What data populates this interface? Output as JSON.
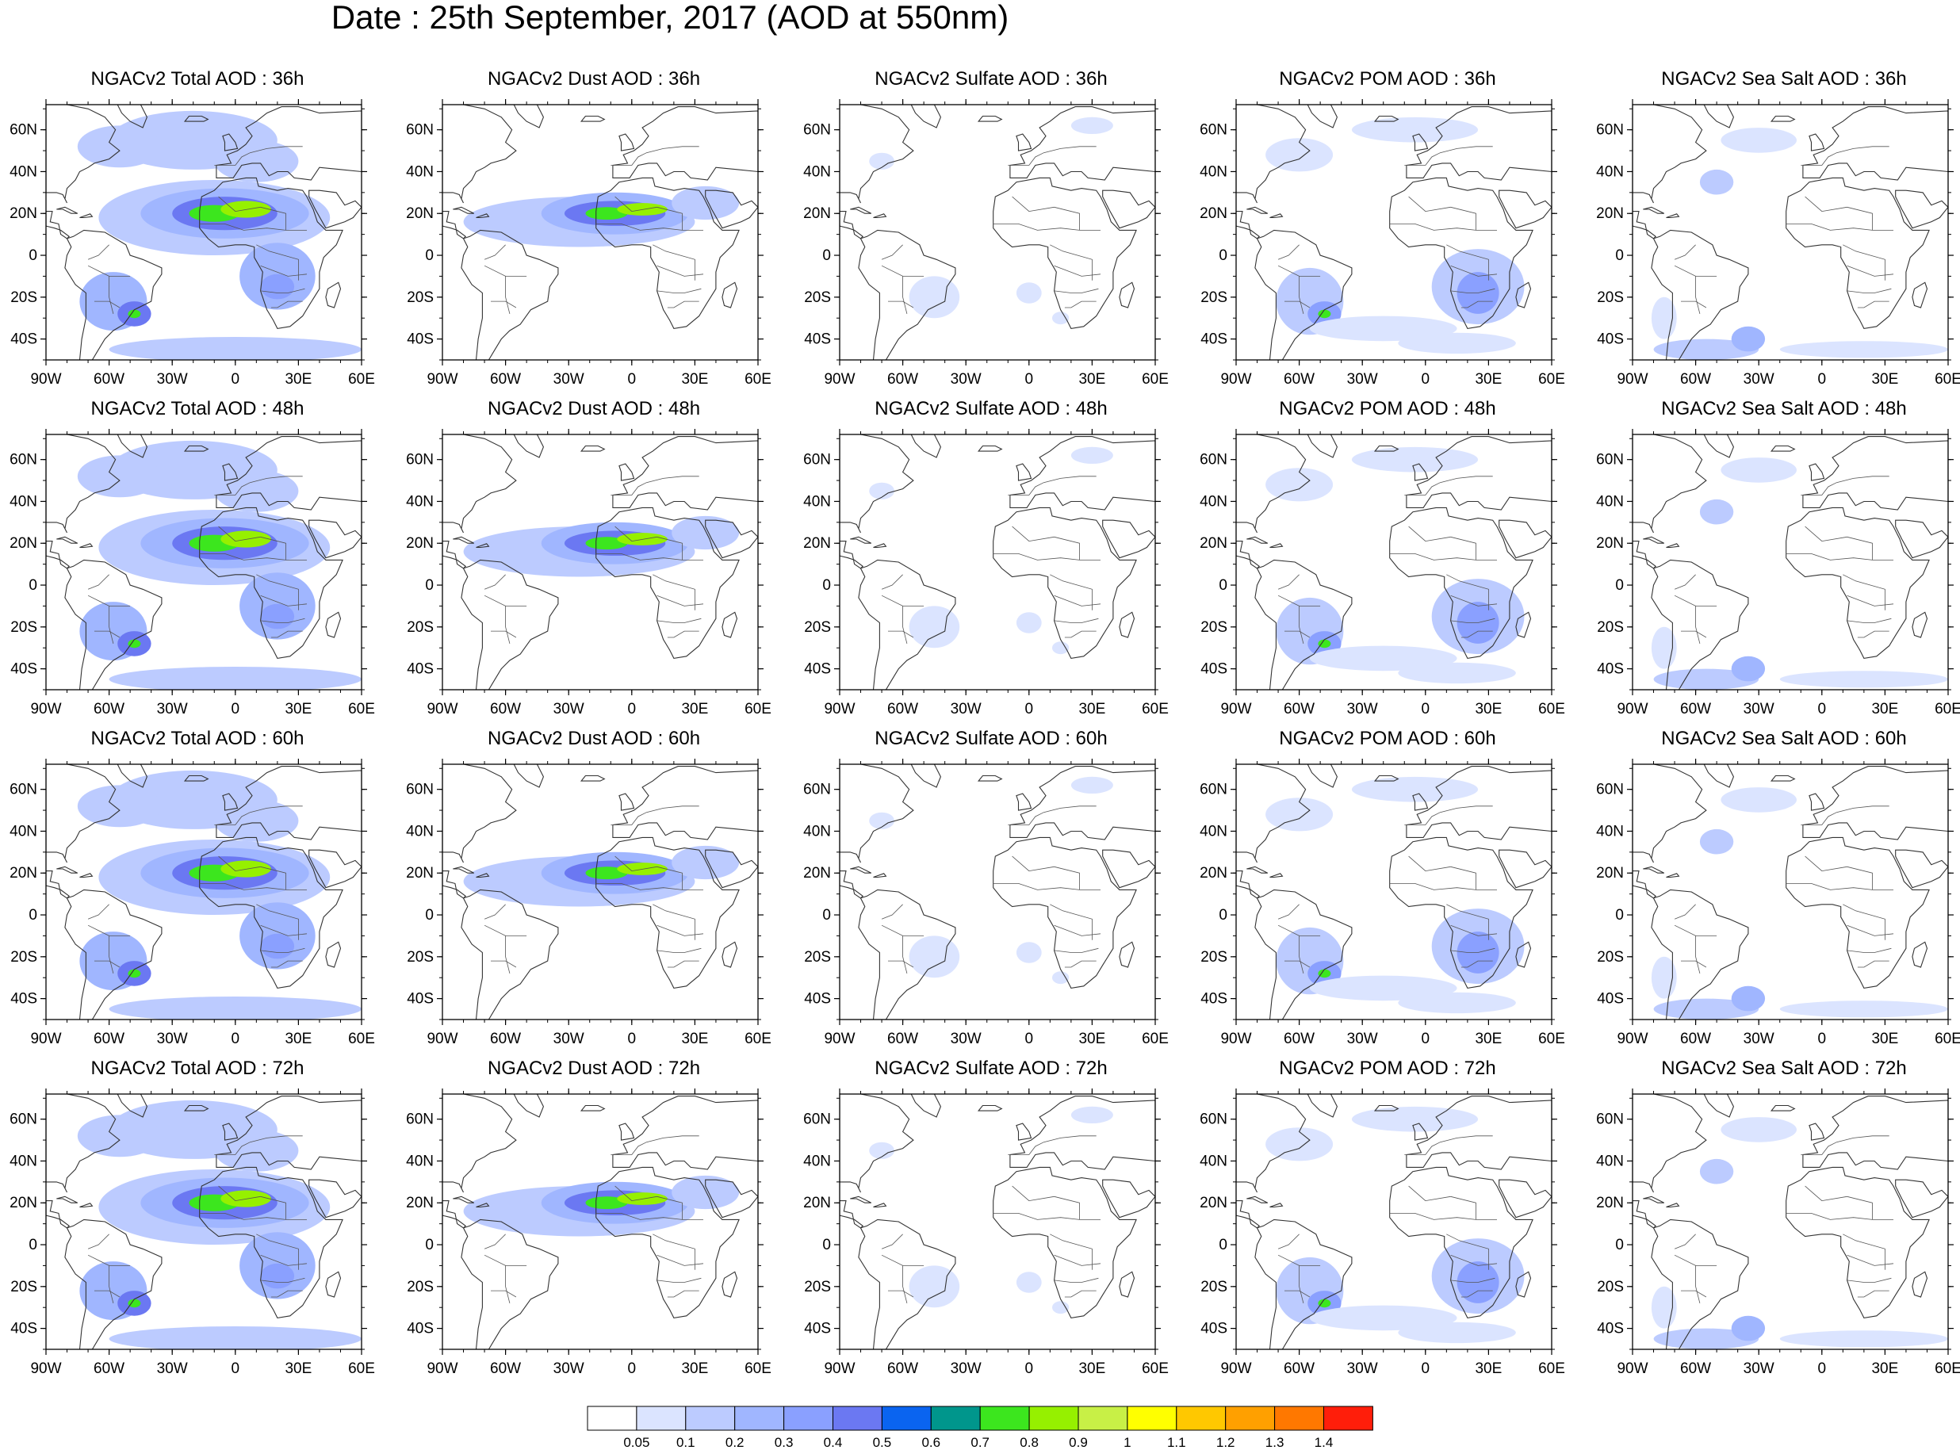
{
  "title": "Date : 25th September, 2017 (AOD at 550nm)",
  "lat_labels": [
    "60N",
    "40N",
    "20N",
    "0",
    "20S",
    "40S"
  ],
  "lon_labels": [
    "90W",
    "60W",
    "30W",
    "0",
    "30E",
    "60E"
  ],
  "panels": [
    {
      "title": "NGACv2 Total AOD : 36h",
      "species": "total",
      "hour": 36
    },
    {
      "title": "NGACv2 Dust AOD : 36h",
      "species": "dust",
      "hour": 36
    },
    {
      "title": "NGACv2 Sulfate AOD : 36h",
      "species": "sulfate",
      "hour": 36
    },
    {
      "title": "NGACv2 POM AOD : 36h",
      "species": "pom",
      "hour": 36
    },
    {
      "title": "NGACv2 Sea Salt AOD : 36h",
      "species": "seasalt",
      "hour": 36
    },
    {
      "title": "NGACv2 Total AOD : 48h",
      "species": "total",
      "hour": 48
    },
    {
      "title": "NGACv2 Dust AOD : 48h",
      "species": "dust",
      "hour": 48
    },
    {
      "title": "NGACv2 Sulfate AOD : 48h",
      "species": "sulfate",
      "hour": 48
    },
    {
      "title": "NGACv2 POM AOD : 48h",
      "species": "pom",
      "hour": 48
    },
    {
      "title": "NGACv2 Sea Salt AOD : 48h",
      "species": "seasalt",
      "hour": 48
    },
    {
      "title": "NGACv2 Total AOD : 60h",
      "species": "total",
      "hour": 60
    },
    {
      "title": "NGACv2 Dust AOD : 60h",
      "species": "dust",
      "hour": 60
    },
    {
      "title": "NGACv2 Sulfate AOD : 60h",
      "species": "sulfate",
      "hour": 60
    },
    {
      "title": "NGACv2 POM AOD : 60h",
      "species": "pom",
      "hour": 60
    },
    {
      "title": "NGACv2 Sea Salt AOD : 60h",
      "species": "seasalt",
      "hour": 60
    },
    {
      "title": "NGACv2 Total AOD : 72h",
      "species": "total",
      "hour": 72
    },
    {
      "title": "NGACv2 Dust AOD : 72h",
      "species": "dust",
      "hour": 72
    },
    {
      "title": "NGACv2 Sulfate AOD : 72h",
      "species": "sulfate",
      "hour": 72
    },
    {
      "title": "NGACv2 POM AOD : 72h",
      "species": "pom",
      "hour": 72
    },
    {
      "title": "NGACv2 Sea Salt  AOD : 72h",
      "species": "seasalt",
      "hour": 72
    }
  ],
  "colorbar": {
    "levels": [
      "0.05",
      "0.1",
      "0.2",
      "0.3",
      "0.4",
      "0.5",
      "0.6",
      "0.7",
      "0.8",
      "0.9",
      "1",
      "1.1",
      "1.2",
      "1.3",
      "1.4"
    ],
    "colors": [
      "#ffffff",
      "#dbe4ff",
      "#bccbff",
      "#a0b6ff",
      "#8aa0ff",
      "#6b78f2",
      "#0a64f0",
      "#00968c",
      "#3ce61e",
      "#96f000",
      "#c8f046",
      "#ffff00",
      "#ffc800",
      "#ffa000",
      "#ff7800",
      "#ff1e0a"
    ]
  }
}
